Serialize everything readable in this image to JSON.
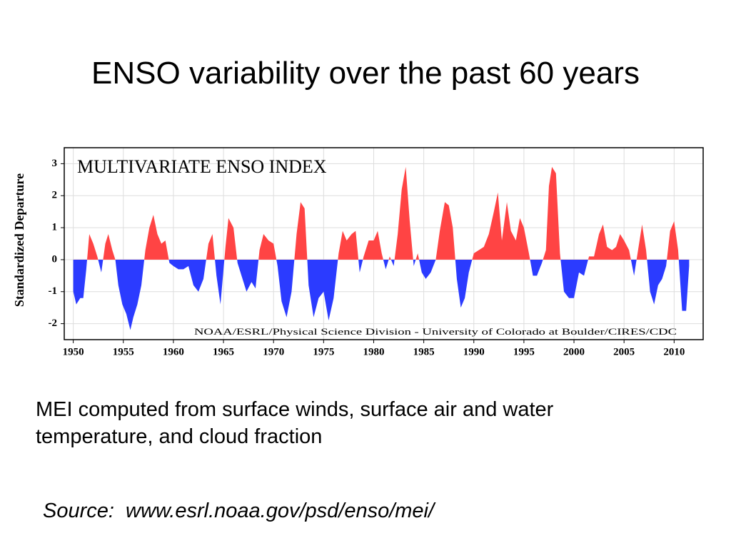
{
  "slide_title": "ENSO variability over the past 60 years",
  "caption": "MEI computed from surface winds, surface air and water temperature, and cloud fraction",
  "source": "Source:  www.esrl.noaa.gov/psd/enso/mei/",
  "chart_data": {
    "type": "area",
    "title": "MULTIVARIATE ENSO INDEX",
    "credit": "NOAA/ESRL/Physical Science Division - University of Colorado at Boulder/CIRES/CDC",
    "y_label": "Standardized Departure",
    "x": [
      1950.0,
      1950.3,
      1950.7,
      1951.0,
      1951.3,
      1951.6,
      1952.0,
      1952.4,
      1952.8,
      1953.2,
      1953.5,
      1953.9,
      1954.2,
      1954.5,
      1954.9,
      1955.3,
      1955.7,
      1956.0,
      1956.4,
      1956.8,
      1957.2,
      1957.6,
      1958.0,
      1958.4,
      1958.8,
      1959.2,
      1959.6,
      1960.0,
      1960.5,
      1961.0,
      1961.5,
      1962.0,
      1962.5,
      1963.0,
      1963.5,
      1963.9,
      1964.3,
      1964.7,
      1965.2,
      1965.5,
      1966.0,
      1966.4,
      1966.8,
      1967.3,
      1967.8,
      1968.2,
      1968.6,
      1969.0,
      1969.5,
      1970.0,
      1970.4,
      1970.8,
      1971.3,
      1971.8,
      1972.3,
      1972.7,
      1973.1,
      1973.5,
      1974.0,
      1974.5,
      1975.0,
      1975.5,
      1976.0,
      1976.5,
      1976.9,
      1977.3,
      1977.8,
      1978.2,
      1978.6,
      1979.0,
      1979.5,
      1980.0,
      1980.4,
      1980.8,
      1981.2,
      1981.6,
      1982.0,
      1982.4,
      1982.8,
      1983.2,
      1983.6,
      1984.0,
      1984.4,
      1984.8,
      1985.2,
      1985.7,
      1986.2,
      1986.6,
      1987.1,
      1987.5,
      1987.9,
      1988.3,
      1988.7,
      1989.1,
      1989.5,
      1990.0,
      1990.5,
      1991.0,
      1991.5,
      1992.0,
      1992.4,
      1992.8,
      1993.3,
      1993.7,
      1994.2,
      1994.6,
      1995.0,
      1995.5,
      1995.9,
      1996.3,
      1996.8,
      1997.2,
      1997.5,
      1997.8,
      1998.2,
      1998.6,
      1999.0,
      1999.5,
      2000.0,
      2000.5,
      2001.0,
      2001.5,
      2002.0,
      2002.5,
      2002.9,
      2003.3,
      2003.8,
      2004.2,
      2004.6,
      2005.0,
      2005.5,
      2006.0,
      2006.4,
      2006.8,
      2007.2,
      2007.6,
      2008.0,
      2008.4,
      2008.8,
      2009.2,
      2009.6,
      2010.0,
      2010.4,
      2010.8,
      2011.2,
      2011.5
    ],
    "values": [
      -1.0,
      -1.4,
      -1.2,
      -1.2,
      -0.3,
      0.8,
      0.5,
      0.1,
      -0.4,
      0.5,
      0.8,
      0.3,
      0.0,
      -0.8,
      -1.4,
      -1.7,
      -2.2,
      -1.8,
      -1.4,
      -0.8,
      0.3,
      1.0,
      1.4,
      0.8,
      0.5,
      0.6,
      -0.1,
      -0.2,
      -0.3,
      -0.3,
      -0.2,
      -0.8,
      -1.0,
      -0.6,
      0.5,
      0.8,
      -0.5,
      -1.4,
      0.4,
      1.3,
      1.0,
      -0.1,
      -0.5,
      -1.0,
      -0.7,
      -0.9,
      0.3,
      0.8,
      0.6,
      0.5,
      -0.2,
      -1.3,
      -1.8,
      -1.0,
      0.8,
      1.8,
      1.6,
      -0.8,
      -1.8,
      -1.2,
      -1.0,
      -1.9,
      -1.2,
      0.2,
      0.9,
      0.6,
      0.8,
      0.9,
      -0.4,
      0.1,
      0.6,
      0.6,
      0.9,
      0.2,
      -0.3,
      0.1,
      -0.2,
      0.8,
      2.2,
      2.9,
      1.2,
      -0.2,
      0.2,
      -0.4,
      -0.6,
      -0.4,
      0.0,
      0.9,
      1.8,
      1.7,
      1.0,
      -0.6,
      -1.5,
      -1.2,
      -0.4,
      0.2,
      0.3,
      0.4,
      0.8,
      1.5,
      2.1,
      0.6,
      1.8,
      0.9,
      0.6,
      1.3,
      1.0,
      0.2,
      -0.5,
      -0.5,
      -0.1,
      0.3,
      2.3,
      2.9,
      2.7,
      0.2,
      -1.0,
      -1.2,
      -1.2,
      -0.4,
      -0.5,
      0.1,
      0.1,
      0.8,
      1.1,
      0.4,
      0.3,
      0.4,
      0.8,
      0.6,
      0.3,
      -0.5,
      0.3,
      1.1,
      0.3,
      -1.0,
      -1.4,
      -0.8,
      -0.6,
      -0.2,
      0.9,
      1.2,
      0.3,
      -1.6,
      -1.6,
      -0.2
    ],
    "positive_color": "#ff4444",
    "negative_color": "#2b3bff",
    "xlim": [
      1949.1,
      2012.9
    ],
    "ylim": [
      -2.5,
      3.5
    ],
    "xticks": [
      1950,
      1955,
      1960,
      1965,
      1970,
      1975,
      1980,
      1985,
      1990,
      1995,
      2000,
      2005,
      2010
    ],
    "yticks": [
      -2,
      -1,
      0,
      1,
      2,
      3
    ],
    "grid": true
  }
}
